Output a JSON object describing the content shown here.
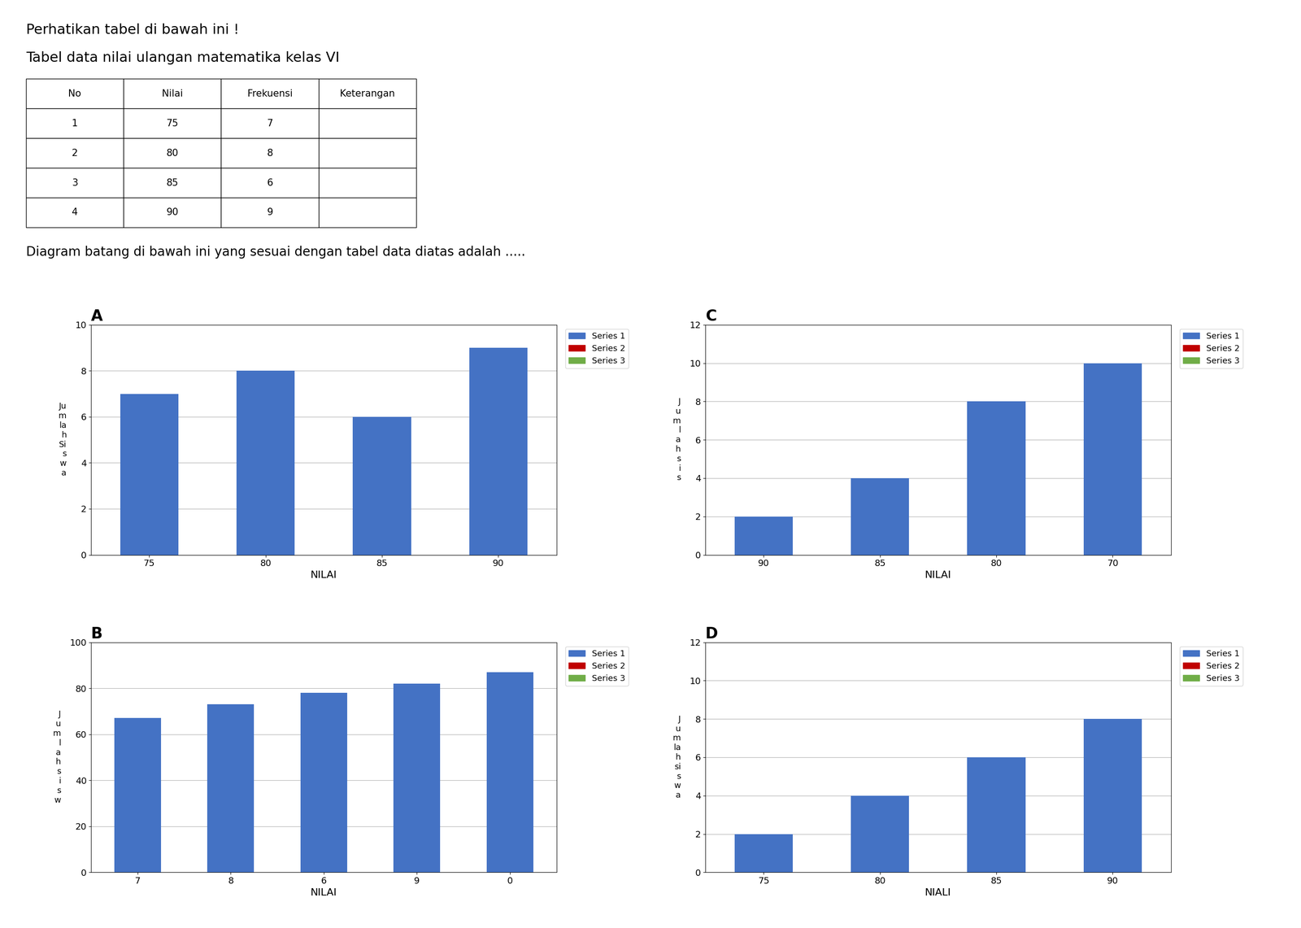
{
  "title": "Perhatikan tabel di bawah ini !",
  "subtitle": "Tabel data nilai ulangan matematika kelas VI",
  "table": {
    "headers": [
      "No",
      "Nilai",
      "Frekuensi",
      "Keterangan"
    ],
    "rows": [
      [
        "1",
        "75",
        "7",
        null
      ],
      [
        "2",
        "80",
        "8",
        null
      ],
      [
        "3",
        "85",
        "6",
        null
      ],
      [
        "4",
        "90",
        "9",
        null
      ]
    ]
  },
  "annotations": [
    "Diagram batang di bawah ini yang sesuai dengan tabel data diatas adalah ....."
  ],
  "chart_data": [
    {
      "type": "bar",
      "title": "A",
      "x_label": "NILAI",
      "y_label": "Ju\nm\nla\nh\nSi\ns\nw\na",
      "categories": [
        "75",
        "80",
        "85",
        "90"
      ],
      "series": [
        {
          "name": "Series 1",
          "color": "#4472C4",
          "values": [
            7,
            8,
            6,
            9
          ]
        },
        {
          "name": "Series 2",
          "color": "#C00000",
          "values": [
            null,
            null,
            null,
            null
          ]
        },
        {
          "name": "Series 3",
          "color": "#70AD47",
          "values": [
            null,
            null,
            null,
            null
          ]
        }
      ],
      "ylim": [
        0,
        10
      ],
      "yticks": [
        0,
        2,
        4,
        6,
        8,
        10
      ],
      "grid": true,
      "legend": "upper right"
    },
    {
      "type": "bar",
      "title": "B",
      "x_label": "NILAI",
      "y_label": "J\nu\nm\nl\na\nh\ns\ni\ns\nw",
      "categories": [
        "7",
        "8",
        "6",
        "9",
        "0"
      ],
      "series": [
        {
          "name": "Series 1",
          "color": "#4472C4",
          "values": [
            67,
            73,
            78,
            82,
            87
          ]
        },
        {
          "name": "Series 2",
          "color": "#C00000",
          "values": [
            null,
            null,
            null,
            null,
            null
          ]
        },
        {
          "name": "Series 3",
          "color": "#70AD47",
          "values": [
            null,
            null,
            null,
            null,
            null
          ]
        }
      ],
      "ylim": [
        0,
        100
      ],
      "yticks": [
        0,
        20,
        40,
        60,
        80,
        100
      ],
      "grid": true,
      "legend": "upper right"
    },
    {
      "type": "bar",
      "title": "C",
      "x_label": "NILAI",
      "y_label": "J\nu\nm\nl\na\nh\ns\ni\ns",
      "categories": [
        "90",
        "85",
        "80",
        "70"
      ],
      "series": [
        {
          "name": "Series 1",
          "color": "#4472C4",
          "values": [
            2,
            4,
            8,
            10
          ]
        },
        {
          "name": "Series 2",
          "color": "#C00000",
          "values": [
            null,
            null,
            null,
            null
          ]
        },
        {
          "name": "Series 3",
          "color": "#70AD47",
          "values": [
            null,
            null,
            null,
            null
          ]
        }
      ],
      "ylim": [
        0,
        12
      ],
      "yticks": [
        0,
        2,
        4,
        6,
        8,
        10,
        12
      ],
      "grid": true,
      "legend": "upper right"
    },
    {
      "type": "bar",
      "title": "D",
      "x_label": "NIALI",
      "y_label": "J\nu\nm\nla\nh\nsi\ns\nw\na",
      "categories": [
        "75",
        "80",
        "85",
        "90"
      ],
      "series": [
        {
          "name": "Series 1",
          "color": "#4472C4",
          "values": [
            2,
            4,
            6,
            8
          ]
        },
        {
          "name": "Series 2",
          "color": "#C00000",
          "values": [
            null,
            null,
            null,
            null
          ]
        },
        {
          "name": "Series 3",
          "color": "#70AD47",
          "values": [
            null,
            null,
            null,
            null
          ]
        }
      ],
      "ylim": [
        0,
        12
      ],
      "yticks": [
        0,
        2,
        4,
        6,
        8,
        10,
        12
      ],
      "grid": true,
      "legend": "upper right"
    }
  ]
}
